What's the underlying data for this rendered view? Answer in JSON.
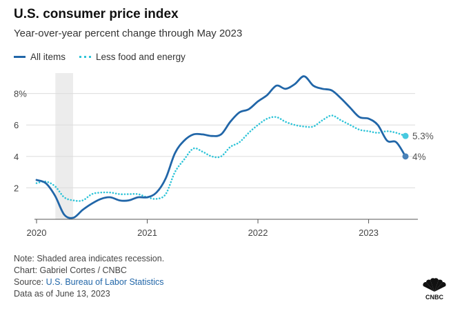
{
  "header": {
    "title": "U.S. consumer price index",
    "subtitle": "Year-over-year percent change through May 2023"
  },
  "legend": [
    {
      "label": "All items",
      "style": "solid",
      "color": "#2166a8"
    },
    {
      "label": "Less food and energy",
      "style": "dotted",
      "color": "#2fc4d8"
    }
  ],
  "footer": {
    "note": "Note: Shaded area indicates recession.",
    "chart_credit": "Chart: Gabriel Cortes / CNBC",
    "source_prefix": "Source: ",
    "source_link": "U.S. Bureau of Labor Statistics",
    "data_as_of": "Data as of June 13, 2023"
  },
  "logo": {
    "text": "CNBC",
    "icon": "nbc-peacock-icon"
  },
  "chart_data": {
    "type": "line",
    "title": "U.S. consumer price index",
    "subtitle": "Year-over-year percent change through May 2023",
    "x_unit": "year",
    "x_ticks": [
      {
        "value": 2020,
        "label": "2020"
      },
      {
        "value": 2021,
        "label": "2021"
      },
      {
        "value": 2022,
        "label": "2022"
      },
      {
        "value": 2023,
        "label": "2023"
      }
    ],
    "y_ticks": [
      {
        "value": 2,
        "label": "2"
      },
      {
        "value": 4,
        "label": "4"
      },
      {
        "value": 6,
        "label": "6"
      },
      {
        "value": 8,
        "label": "8%"
      }
    ],
    "xlim": [
      2020,
      2023.42
    ],
    "ylim": [
      0,
      9.3
    ],
    "grid": "horizontal",
    "recession": {
      "start": 2020.17,
      "end": 2020.33
    },
    "series": [
      {
        "name": "All items",
        "style": "solid",
        "color": "#2166a8",
        "end_label": "4%",
        "x": [
          2020.0,
          2020.083,
          2020.167,
          2020.25,
          2020.333,
          2020.417,
          2020.5,
          2020.583,
          2020.667,
          2020.75,
          2020.833,
          2020.917,
          2021.0,
          2021.083,
          2021.167,
          2021.25,
          2021.333,
          2021.417,
          2021.5,
          2021.583,
          2021.667,
          2021.75,
          2021.833,
          2021.917,
          2022.0,
          2022.083,
          2022.167,
          2022.25,
          2022.333,
          2022.417,
          2022.5,
          2022.583,
          2022.667,
          2022.75,
          2022.833,
          2022.917,
          2023.0,
          2023.083,
          2023.167,
          2023.25,
          2023.333
        ],
        "values": [
          2.5,
          2.3,
          1.5,
          0.3,
          0.1,
          0.6,
          1.0,
          1.3,
          1.4,
          1.2,
          1.2,
          1.4,
          1.4,
          1.7,
          2.6,
          4.2,
          5.0,
          5.4,
          5.4,
          5.3,
          5.4,
          6.2,
          6.8,
          7.0,
          7.5,
          7.9,
          8.5,
          8.3,
          8.6,
          9.1,
          8.5,
          8.3,
          8.2,
          7.7,
          7.1,
          6.5,
          6.4,
          6.0,
          5.0,
          4.9,
          4.0
        ]
      },
      {
        "name": "Less food and energy",
        "style": "dotted",
        "color": "#2fc4d8",
        "end_label": "5.3%",
        "x": [
          2020.0,
          2020.083,
          2020.167,
          2020.25,
          2020.333,
          2020.417,
          2020.5,
          2020.583,
          2020.667,
          2020.75,
          2020.833,
          2020.917,
          2021.0,
          2021.083,
          2021.167,
          2021.25,
          2021.333,
          2021.417,
          2021.5,
          2021.583,
          2021.667,
          2021.75,
          2021.833,
          2021.917,
          2022.0,
          2022.083,
          2022.167,
          2022.25,
          2022.333,
          2022.417,
          2022.5,
          2022.583,
          2022.667,
          2022.75,
          2022.833,
          2022.917,
          2023.0,
          2023.083,
          2023.167,
          2023.25,
          2023.333
        ],
        "values": [
          2.3,
          2.4,
          2.1,
          1.4,
          1.2,
          1.2,
          1.6,
          1.7,
          1.7,
          1.6,
          1.6,
          1.6,
          1.4,
          1.3,
          1.6,
          3.0,
          3.8,
          4.5,
          4.3,
          4.0,
          4.0,
          4.6,
          4.9,
          5.5,
          6.0,
          6.4,
          6.5,
          6.2,
          6.0,
          5.9,
          5.9,
          6.3,
          6.6,
          6.3,
          6.0,
          5.7,
          5.6,
          5.5,
          5.6,
          5.5,
          5.3
        ]
      }
    ]
  }
}
